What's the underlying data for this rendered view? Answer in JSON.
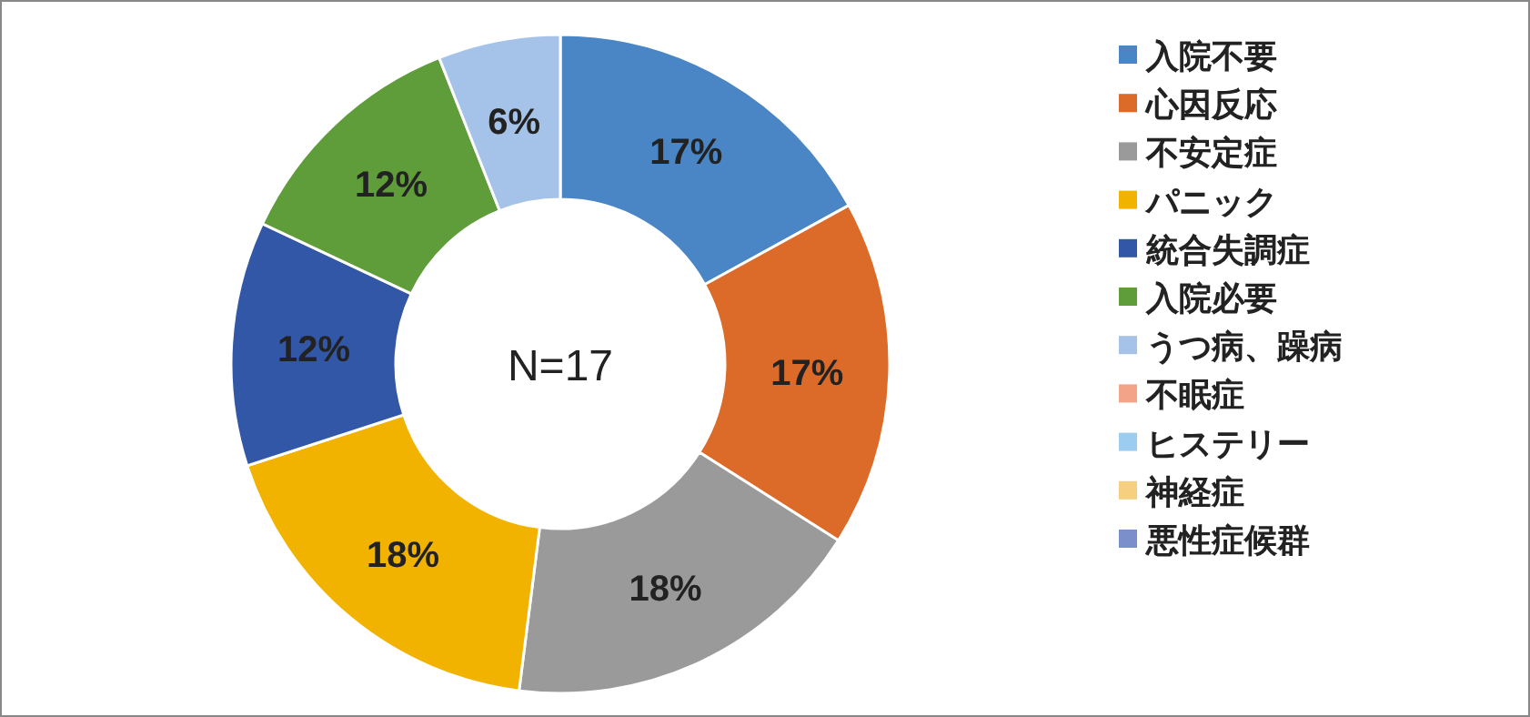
{
  "chart_data": {
    "type": "donut",
    "categories": [
      "入院不要",
      "心因反応",
      "不安定症",
      "パニック",
      "統合失調症",
      "入院必要",
      "うつ病、躁病",
      "不眠症",
      "ヒステリー",
      "神経症",
      "悪性症候群"
    ],
    "values": [
      17,
      17,
      18,
      18,
      12,
      12,
      6,
      0,
      0,
      0,
      0
    ],
    "colors": [
      "#4a86c5",
      "#dc6a28",
      "#9a9a9a",
      "#f1b300",
      "#3157a6",
      "#5f9c3a",
      "#a5c3e8",
      "#f3a488",
      "#9ccdf0",
      "#f7cf80",
      "#7b8fcb"
    ],
    "value_labels": [
      "17%",
      "17%",
      "18%",
      "18%",
      "12%",
      "12%",
      "6%",
      null,
      null,
      null,
      null
    ],
    "annotations": [
      "N=17"
    ],
    "legend": "right"
  }
}
